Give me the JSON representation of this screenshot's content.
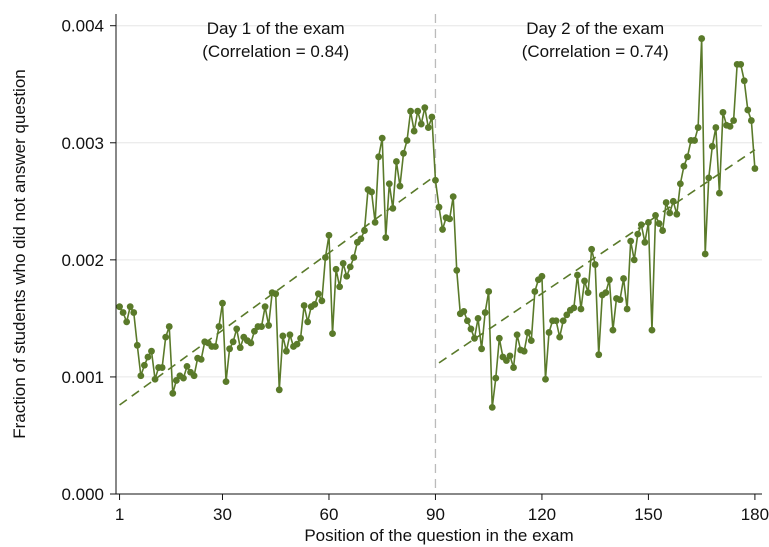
{
  "chart_data": {
    "type": "scatter",
    "xlabel": "Position of the question in the exam",
    "ylabel": "Fraction of students who did not answer question",
    "x_ticks": [
      1,
      30,
      60,
      90,
      120,
      150,
      180
    ],
    "y_ticks": [
      "0.000",
      "0.001",
      "0.002",
      "0.003",
      "0.004"
    ],
    "xlim": [
      0,
      182
    ],
    "ylim": [
      0,
      0.0041
    ],
    "grid": "horizontal",
    "colors": {
      "series": "#5a7a2a",
      "divider": "#bbbbbb",
      "grid": "#e6e6e6"
    },
    "divider_x": 90,
    "annotations": [
      {
        "line1": "Day 1 of the exam",
        "line2": "(Correlation = 0.84)",
        "x": 45
      },
      {
        "line1": "Day 2 of the exam",
        "line2": "(Correlation = 0.74)",
        "x": 135
      }
    ],
    "series": [
      {
        "values": [
          [
            1,
            0.0016
          ],
          [
            2,
            0.00155
          ],
          [
            3,
            0.00147
          ],
          [
            4,
            0.0016
          ],
          [
            5,
            0.00155
          ],
          [
            6,
            0.00127
          ],
          [
            7,
            0.00101
          ],
          [
            8,
            0.0011
          ],
          [
            9,
            0.00117
          ],
          [
            10,
            0.00122
          ],
          [
            11,
            0.00098
          ],
          [
            12,
            0.00108
          ],
          [
            13,
            0.00108
          ],
          [
            14,
            0.00134
          ],
          [
            15,
            0.00143
          ],
          [
            16,
            0.00086
          ],
          [
            17,
            0.00097
          ],
          [
            18,
            0.00101
          ],
          [
            19,
            0.00099
          ],
          [
            20,
            0.00109
          ],
          [
            21,
            0.00104
          ],
          [
            22,
            0.00101
          ],
          [
            23,
            0.00116
          ],
          [
            24,
            0.00115
          ],
          [
            25,
            0.0013
          ],
          [
            26,
            0.00129
          ],
          [
            27,
            0.00126
          ],
          [
            28,
            0.00126
          ],
          [
            29,
            0.00143
          ],
          [
            30,
            0.00163
          ],
          [
            31,
            0.00096
          ],
          [
            32,
            0.00124
          ],
          [
            33,
            0.0013
          ],
          [
            34,
            0.00141
          ],
          [
            35,
            0.00125
          ],
          [
            36,
            0.00134
          ],
          [
            37,
            0.00131
          ],
          [
            38,
            0.00129
          ],
          [
            39,
            0.00139
          ],
          [
            40,
            0.00143
          ],
          [
            41,
            0.00143
          ],
          [
            42,
            0.0016
          ],
          [
            43,
            0.00144
          ],
          [
            44,
            0.00172
          ],
          [
            45,
            0.00171
          ],
          [
            46,
            0.00089
          ],
          [
            47,
            0.00135
          ],
          [
            48,
            0.00122
          ],
          [
            49,
            0.00136
          ],
          [
            50,
            0.00126
          ],
          [
            51,
            0.00128
          ],
          [
            52,
            0.00133
          ],
          [
            53,
            0.00161
          ],
          [
            54,
            0.00147
          ],
          [
            55,
            0.0016
          ],
          [
            56,
            0.00162
          ],
          [
            57,
            0.00171
          ],
          [
            58,
            0.00165
          ],
          [
            59,
            0.00202
          ],
          [
            60,
            0.00221
          ],
          [
            61,
            0.00137
          ],
          [
            62,
            0.00192
          ],
          [
            63,
            0.00177
          ],
          [
            64,
            0.00197
          ],
          [
            65,
            0.00186
          ],
          [
            66,
            0.00194
          ],
          [
            67,
            0.00202
          ],
          [
            68,
            0.00215
          ],
          [
            69,
            0.00218
          ],
          [
            70,
            0.00225
          ],
          [
            71,
            0.0026
          ],
          [
            72,
            0.00258
          ],
          [
            73,
            0.00232
          ],
          [
            74,
            0.00288
          ],
          [
            75,
            0.00304
          ],
          [
            76,
            0.00219
          ],
          [
            77,
            0.00265
          ],
          [
            78,
            0.00244
          ],
          [
            79,
            0.00284
          ],
          [
            80,
            0.00263
          ],
          [
            81,
            0.00291
          ],
          [
            82,
            0.00302
          ],
          [
            83,
            0.00327
          ],
          [
            84,
            0.0031
          ],
          [
            85,
            0.00327
          ],
          [
            86,
            0.00316
          ],
          [
            87,
            0.0033
          ],
          [
            88,
            0.00313
          ],
          [
            89,
            0.00322
          ],
          [
            90,
            0.00268
          ],
          [
            91,
            0.00245
          ],
          [
            92,
            0.00226
          ],
          [
            93,
            0.00236
          ],
          [
            94,
            0.00235
          ],
          [
            95,
            0.00254
          ],
          [
            96,
            0.00191
          ],
          [
            97,
            0.00154
          ],
          [
            98,
            0.00156
          ],
          [
            99,
            0.00148
          ],
          [
            100,
            0.00141
          ],
          [
            101,
            0.00133
          ],
          [
            102,
            0.0015
          ],
          [
            103,
            0.00124
          ],
          [
            104,
            0.00155
          ],
          [
            105,
            0.00173
          ],
          [
            106,
            0.00074
          ],
          [
            107,
            0.00099
          ],
          [
            108,
            0.00133
          ],
          [
            109,
            0.00117
          ],
          [
            110,
            0.00114
          ],
          [
            111,
            0.00118
          ],
          [
            112,
            0.00108
          ],
          [
            113,
            0.00136
          ],
          [
            114,
            0.00123
          ],
          [
            115,
            0.00122
          ],
          [
            116,
            0.00138
          ],
          [
            117,
            0.00131
          ],
          [
            118,
            0.00173
          ],
          [
            119,
            0.00183
          ],
          [
            120,
            0.00186
          ],
          [
            121,
            0.00098
          ],
          [
            122,
            0.00138
          ],
          [
            123,
            0.00148
          ],
          [
            124,
            0.00148
          ],
          [
            125,
            0.00134
          ],
          [
            126,
            0.00148
          ],
          [
            127,
            0.00153
          ],
          [
            128,
            0.00157
          ],
          [
            129,
            0.00159
          ],
          [
            130,
            0.00187
          ],
          [
            131,
            0.00158
          ],
          [
            132,
            0.00182
          ],
          [
            133,
            0.00172
          ],
          [
            134,
            0.00209
          ],
          [
            135,
            0.00196
          ],
          [
            136,
            0.00119
          ],
          [
            137,
            0.0017
          ],
          [
            138,
            0.00172
          ],
          [
            139,
            0.00183
          ],
          [
            140,
            0.0014
          ],
          [
            141,
            0.00167
          ],
          [
            142,
            0.00166
          ],
          [
            143,
            0.00184
          ],
          [
            144,
            0.00158
          ],
          [
            145,
            0.00216
          ],
          [
            146,
            0.002
          ],
          [
            147,
            0.00222
          ],
          [
            148,
            0.0023
          ],
          [
            149,
            0.00215
          ],
          [
            150,
            0.00232
          ],
          [
            151,
            0.0014
          ],
          [
            152,
            0.00238
          ],
          [
            153,
            0.00231
          ],
          [
            154,
            0.00225
          ],
          [
            155,
            0.00249
          ],
          [
            156,
            0.0024
          ],
          [
            157,
            0.0025
          ],
          [
            158,
            0.00239
          ],
          [
            159,
            0.00265
          ],
          [
            160,
            0.0028
          ],
          [
            161,
            0.00288
          ],
          [
            162,
            0.00302
          ],
          [
            163,
            0.00302
          ],
          [
            164,
            0.00313
          ],
          [
            165,
            0.00389
          ],
          [
            166,
            0.00205
          ],
          [
            167,
            0.0027
          ],
          [
            168,
            0.00297
          ],
          [
            169,
            0.00313
          ],
          [
            170,
            0.00257
          ],
          [
            171,
            0.00326
          ],
          [
            172,
            0.00315
          ],
          [
            173,
            0.00314
          ],
          [
            174,
            0.00319
          ],
          [
            175,
            0.00367
          ],
          [
            176,
            0.00367
          ],
          [
            177,
            0.00353
          ],
          [
            178,
            0.00328
          ],
          [
            179,
            0.00319
          ],
          [
            180,
            0.00278
          ]
        ]
      }
    ],
    "fit_lines": [
      {
        "x": [
          1,
          90
        ],
        "y": [
          0.00076,
          0.00272
        ]
      },
      {
        "x": [
          91,
          180
        ],
        "y": [
          0.00112,
          0.00294
        ]
      }
    ]
  }
}
